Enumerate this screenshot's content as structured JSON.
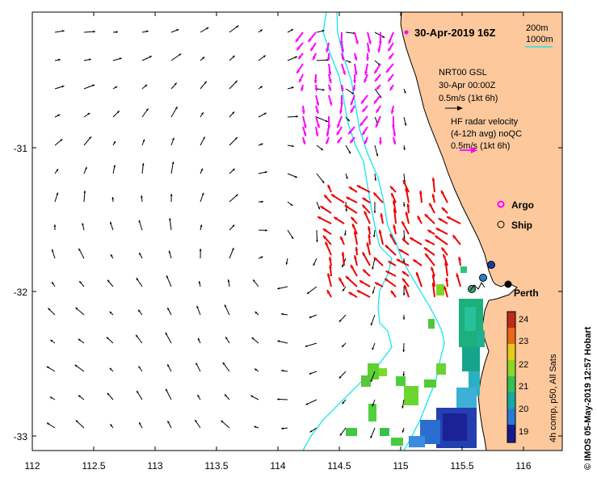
{
  "map": {
    "timestamp": "30-Apr-2019 16Z",
    "x_axis": {
      "ticks": [
        "112",
        "112.5",
        "113",
        "113.5",
        "114",
        "114.5",
        "115",
        "115.5",
        "116"
      ],
      "lon_range": [
        112,
        116.3
      ]
    },
    "y_axis": {
      "ticks": [
        "-31",
        "-32",
        "-33"
      ],
      "lat_range": [
        -33.1,
        -30.1
      ]
    },
    "isobaths": {
      "label_200": "200m",
      "label_1000": "1000m",
      "color": "#00e5ee"
    },
    "model_legend": {
      "name": "NRT00 GSL",
      "time": "30-Apr 00:00Z",
      "scale": "0.5m/s (1kt 6h)"
    },
    "radar_legend": {
      "line1": "HF radar velocity",
      "line2": "(4-12h avg) noQC",
      "scale": "0.5m/s (1kt 6h)"
    },
    "markers": {
      "argo": "Argo",
      "ship": "Ship",
      "argo_color": "#ff00ff"
    },
    "city": {
      "name": "Perth"
    },
    "colorbar": {
      "label": "4h comp, p50, All Sats",
      "ticks": [
        "24",
        "23",
        "22",
        "21",
        "20",
        "19"
      ],
      "min": 18.5,
      "max": 24.5
    },
    "credit": "© IMOS 05-May-2019 12:57 Hobart",
    "colors": {
      "land": "#fcc89c",
      "radar_red": "#ee0000",
      "radar_magenta": "#ff00ff"
    }
  }
}
